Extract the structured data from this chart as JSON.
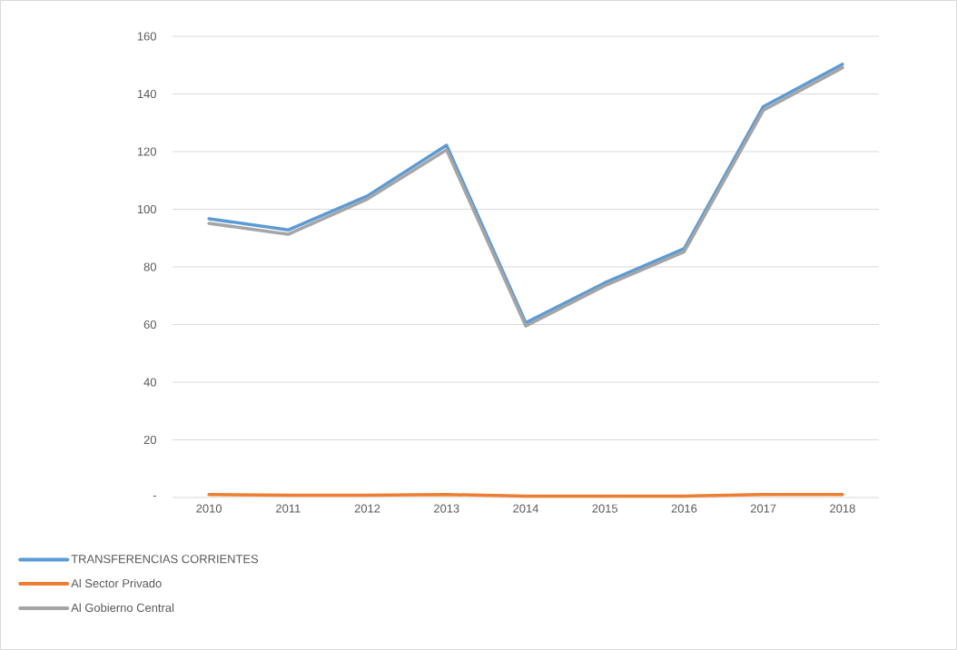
{
  "chart_data": {
    "type": "line",
    "categories": [
      "2010",
      "2011",
      "2012",
      "2013",
      "2014",
      "2015",
      "2016",
      "2017",
      "2018"
    ],
    "series": [
      {
        "name": "TRANSFERENCIAS CORRIENTES",
        "color": "#5b9bd5",
        "values": [
          96.7,
          92.8,
          104.6,
          122.2,
          60.6,
          74.5,
          86.3,
          135.6,
          150.3
        ]
      },
      {
        "name": "Al Sector Privado",
        "color": "#ed7d31",
        "values": [
          1,
          0.8,
          0.8,
          1,
          0.5,
          0.5,
          0.5,
          1,
          1
        ]
      },
      {
        "name": "Al Gobierno Central",
        "color": "#a5a5a5",
        "values": [
          95.1,
          91.3,
          103.5,
          120.6,
          59.5,
          73.5,
          85.2,
          134.3,
          149.1
        ]
      }
    ],
    "ylim": [
      0,
      160
    ],
    "yticks": [
      {
        "value": 0,
        "label": "-"
      },
      20,
      40,
      60,
      80,
      100,
      120,
      140,
      160
    ],
    "grid": "y",
    "legend": "bottom left",
    "marker": "none",
    "line_style": "solid"
  }
}
